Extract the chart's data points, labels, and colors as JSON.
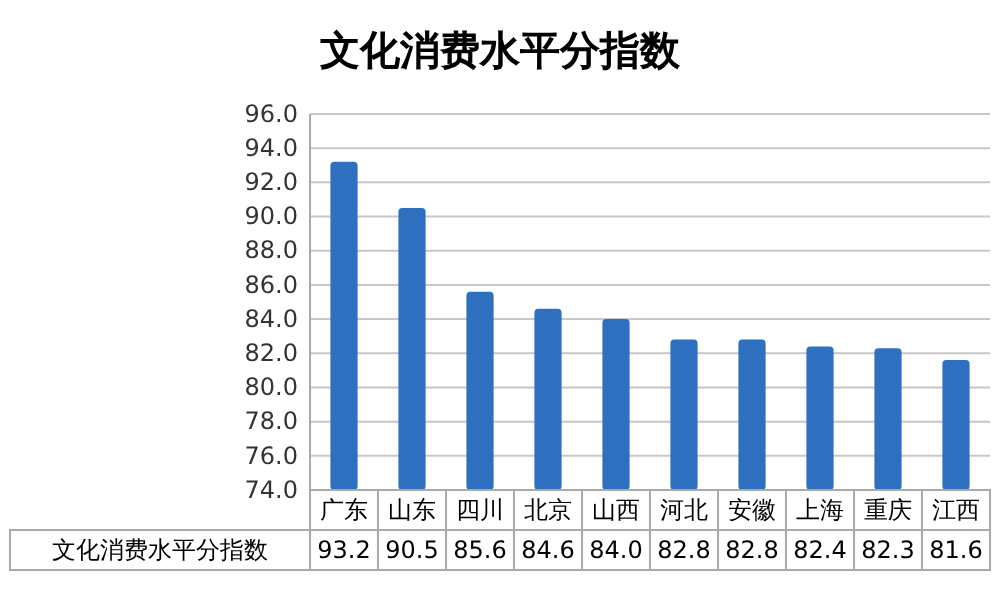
{
  "chart_data": {
    "type": "bar",
    "title": "文化消费水平分指数",
    "categories": [
      "广东",
      "山东",
      "四川",
      "北京",
      "山西",
      "河北",
      "安徽",
      "上海",
      "重庆",
      "江西"
    ],
    "series": [
      {
        "name": "文化消费水平分指数",
        "color": "#2e6fc0",
        "values": [
          93.2,
          90.5,
          85.6,
          84.6,
          84.0,
          82.8,
          82.8,
          82.4,
          82.3,
          81.6
        ],
        "value_labels": [
          "93.2",
          "90.5",
          "85.6",
          "84.6",
          "84.0",
          "82.8",
          "82.8",
          "82.4",
          "82.3",
          "81.6"
        ]
      }
    ],
    "ylim": [
      74,
      96
    ],
    "yticks": [
      {
        "value": 74,
        "label": "74.0"
      },
      {
        "value": 76,
        "label": "76.0"
      },
      {
        "value": 78,
        "label": "78.0"
      },
      {
        "value": 80,
        "label": "80.0"
      },
      {
        "value": 82,
        "label": "82.0"
      },
      {
        "value": 84,
        "label": "84.0"
      },
      {
        "value": 86,
        "label": "86.0"
      },
      {
        "value": 88,
        "label": "88.0"
      },
      {
        "value": 90,
        "label": "90.0"
      },
      {
        "value": 92,
        "label": "92.0"
      },
      {
        "value": 94,
        "label": "94.0"
      },
      {
        "value": 96,
        "label": "96.0"
      }
    ],
    "grid": true
  }
}
